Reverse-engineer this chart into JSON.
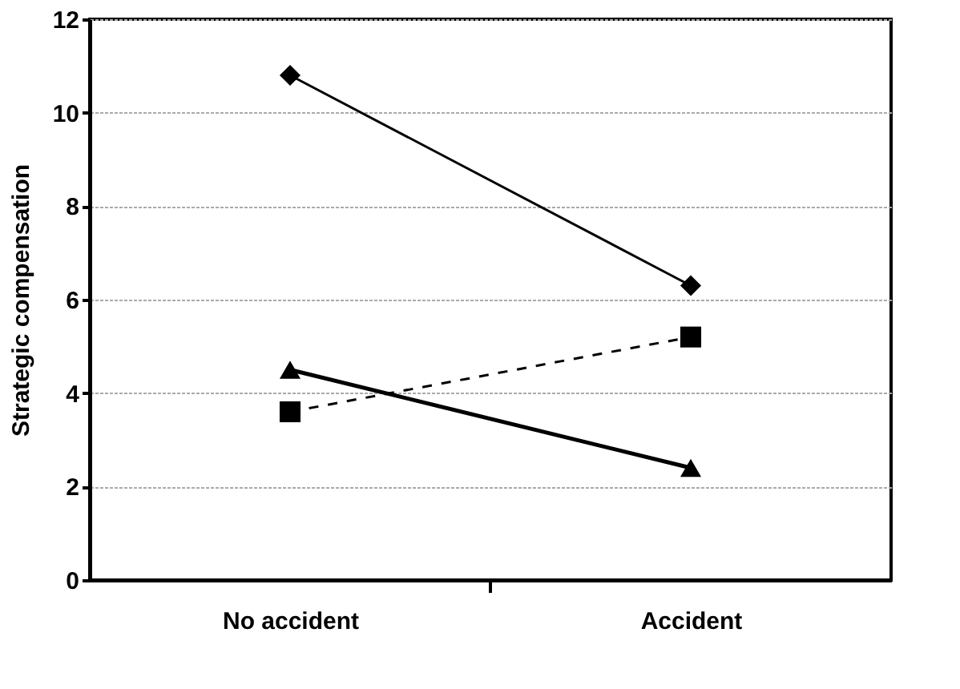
{
  "chart_data": {
    "type": "line",
    "ylabel": "Strategic compensation",
    "categories": [
      "No accident",
      "Accident"
    ],
    "ylim": [
      0,
      12
    ],
    "yticks": [
      0,
      2,
      4,
      6,
      8,
      10,
      12
    ],
    "grid": "y",
    "series": [
      {
        "color": "#000000",
        "values": [
          10.8,
          6.3
        ],
        "marker": "diamond",
        "line_style": "solid"
      },
      {
        "color": "#000000",
        "values": [
          3.6,
          5.2
        ],
        "marker": "square",
        "line_style": "dashed"
      },
      {
        "color": "#000000",
        "values": [
          4.5,
          2.4
        ],
        "marker": "triangle",
        "line_style": "solid"
      }
    ]
  }
}
